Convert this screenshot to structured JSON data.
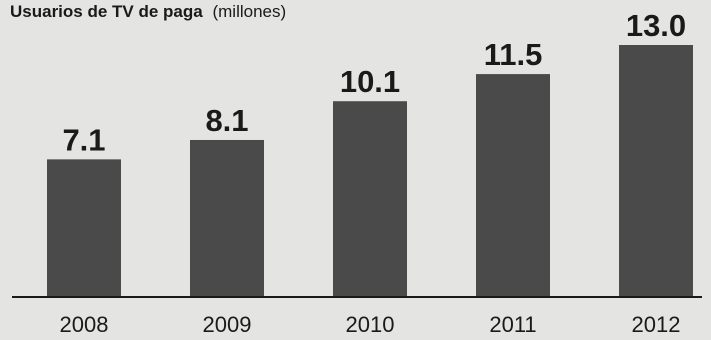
{
  "chart_data": {
    "type": "bar",
    "title": "Usuarios de TV de paga",
    "subtitle": "(millones)",
    "categories": [
      "2008",
      "2009",
      "2010",
      "2011",
      "2012"
    ],
    "values": [
      7.1,
      8.1,
      10.1,
      11.5,
      13.0
    ],
    "value_labels": [
      "7.1",
      "8.1",
      "10.1",
      "11.5",
      "13.0"
    ],
    "xlabel": "",
    "ylabel": "",
    "ylim": [
      0,
      13.0
    ],
    "grid": false,
    "legend": "none",
    "colors": {
      "bar": "#4a4a4a",
      "text": "#1a1a1a",
      "axis": "#1a1a1a",
      "background": "#e4e4e2"
    }
  }
}
